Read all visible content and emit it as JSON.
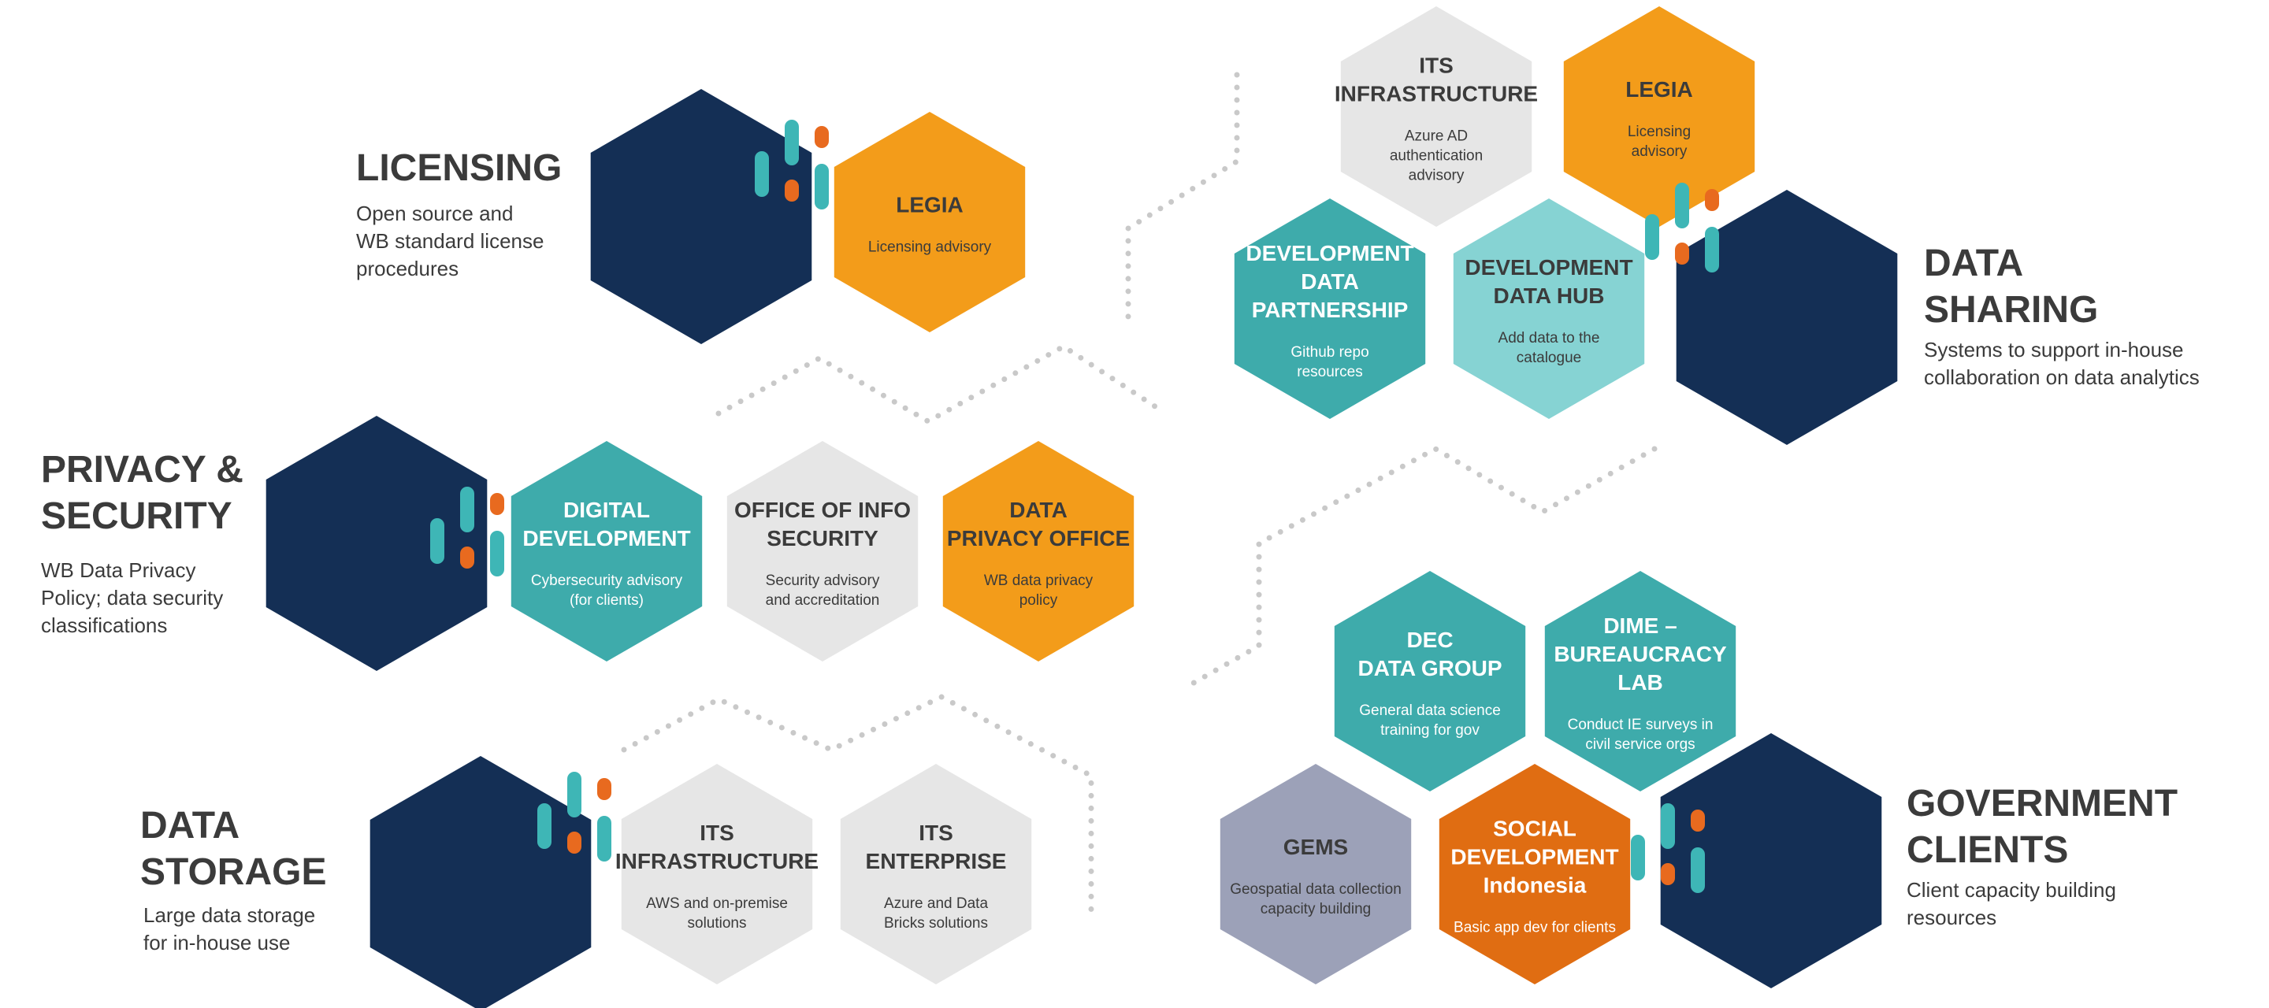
{
  "colors": {
    "navy": "#142f55",
    "orange_light": "#f39c1a",
    "orange_dark": "#e06d12",
    "teal": "#3eabab",
    "teal_light": "#86d3d3",
    "gray_light": "#e6e6e6",
    "gray_blue": "#9ca1b8",
    "dark_text": "#3b3b3b",
    "accent_teal": "#3eb6b6",
    "accent_orange": "#e86a1f"
  },
  "sections": {
    "licensing": {
      "title": "LICENSING",
      "desc": "Open source and\nWB standard license\nprocedures",
      "units": [
        {
          "title": [
            "LEGIA"
          ],
          "desc": [
            "Licensing advisory"
          ],
          "fill": "orange_light",
          "text": "dark"
        }
      ]
    },
    "privacy": {
      "title": "PRIVACY &\nSECURITY",
      "desc": "WB Data Privacy\nPolicy; data security\nclassifications",
      "units": [
        {
          "title": [
            "DIGITAL",
            "DEVELOPMENT"
          ],
          "desc": [
            "Cybersecurity advisory",
            "(for clients)"
          ],
          "fill": "teal",
          "text": "light"
        },
        {
          "title": [
            "OFFICE OF INFO",
            "SECURITY"
          ],
          "desc": [
            "Security advisory",
            "and accreditation"
          ],
          "fill": "gray_light",
          "text": "dark"
        },
        {
          "title": [
            "DATA",
            "PRIVACY OFFICE"
          ],
          "desc": [
            "WB data privacy",
            "policy"
          ],
          "fill": "orange_light",
          "text": "dark"
        }
      ]
    },
    "storage": {
      "title": "DATA\nSTORAGE",
      "desc": "Large data storage\nfor in-house use",
      "units": [
        {
          "title": [
            "ITS",
            "INFRASTRUCTURE"
          ],
          "desc": [
            "AWS and on-premise",
            "solutions"
          ],
          "fill": "gray_light",
          "text": "dark"
        },
        {
          "title": [
            "ITS",
            "ENTERPRISE"
          ],
          "desc": [
            "Azure and Data",
            "Bricks solutions"
          ],
          "fill": "gray_light",
          "text": "dark"
        }
      ]
    },
    "sharing": {
      "title": "DATA\nSHARING",
      "desc": "Systems to support in-house\ncollaboration on data analytics",
      "units": [
        {
          "title": [
            "ITS",
            "INFRASTRUCTURE"
          ],
          "desc": [
            "Azure AD",
            "authentication",
            "advisory"
          ],
          "fill": "gray_light",
          "text": "dark"
        },
        {
          "title": [
            "LEGIA"
          ],
          "desc": [
            "Licensing",
            "advisory"
          ],
          "fill": "orange_light",
          "text": "dark"
        },
        {
          "title": [
            "DEVELOPMENT",
            "DATA",
            "PARTNERSHIP"
          ],
          "desc": [
            "Github repo",
            "resources"
          ],
          "fill": "teal",
          "text": "light"
        },
        {
          "title": [
            "DEVELOPMENT",
            "DATA HUB"
          ],
          "desc": [
            "Add data to the",
            "catalogue"
          ],
          "fill": "teal_light",
          "text": "dark"
        }
      ]
    },
    "government": {
      "title": "GOVERNMENT\nCLIENTS",
      "desc": "Client capacity building\nresources",
      "units": [
        {
          "title": [
            "DEC",
            "DATA GROUP"
          ],
          "desc": [
            "General data science",
            "training for gov"
          ],
          "fill": "teal",
          "text": "light"
        },
        {
          "title": [
            "DIME –",
            "BUREAUCRACY",
            "LAB"
          ],
          "desc": [
            "Conduct IE surveys in",
            "civil service orgs"
          ],
          "fill": "teal",
          "text": "light"
        },
        {
          "title": [
            "GEMS"
          ],
          "desc": [
            "Geospatial data collection",
            "capacity building"
          ],
          "fill": "gray_blue",
          "text": "dark"
        },
        {
          "title": [
            "SOCIAL",
            "DEVELOPMENT",
            "Indonesia"
          ],
          "desc": [
            "Basic app dev for clients"
          ],
          "fill": "orange_dark",
          "text": "light"
        }
      ]
    }
  }
}
